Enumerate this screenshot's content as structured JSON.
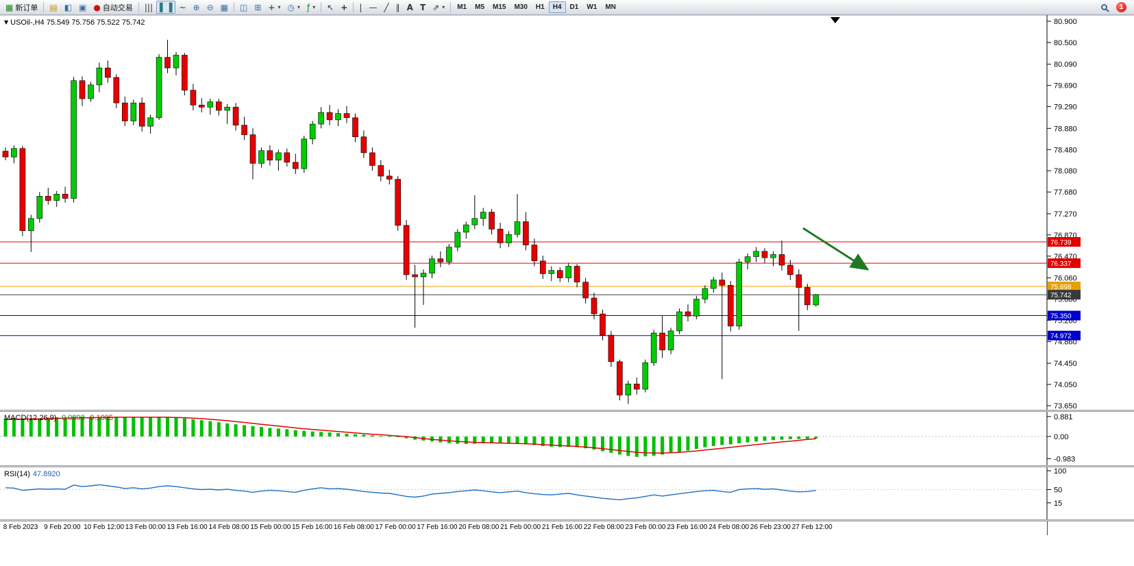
{
  "toolbar": {
    "new_order_label": "新订单",
    "auto_trading_label": "自动交易",
    "timeframe_toolbar": [
      "M1",
      "M5",
      "M15",
      "M30",
      "H1",
      "H4",
      "D1",
      "W1",
      "MN"
    ],
    "active_timeframe": "H4",
    "notification_badge": "1",
    "icons": {
      "new_order": "▦",
      "charts": "▤",
      "profiles": "◧",
      "terminal": "▣",
      "auto_trading": "●",
      "bar_chart": "|||",
      "candle_chart": "▌▐",
      "line_chart": "~",
      "zoom_in": "⊕",
      "zoom_out": "⊖",
      "grid": "▦",
      "tile_horizontal": "◫",
      "tile_vertical": "⊞",
      "new_chart": "+",
      "clock": "◷",
      "indicators": "ƒ",
      "cursor": "↖",
      "crosshair": "+",
      "vertical_line": "|",
      "horizontal_line": "—",
      "trendline": "╱",
      "channel": "∥",
      "text": "A",
      "label": "T",
      "arrows": "⇗",
      "caret": "▾"
    }
  },
  "chart_header": {
    "collapse_marker": "▼",
    "title": "USOil-,H4 75.549 75.756 75.522 75.742",
    "symbol": "USOil-",
    "period": "H4",
    "open": "75.549",
    "high": "75.756",
    "low": "75.522",
    "close": "75.742"
  },
  "indicators": {
    "macd_label": "MACD(12,26,9)",
    "macd_value_main": "-0.0893",
    "macd_value_signal": "-0.1005",
    "rsi_label": "RSI(14)",
    "rsi_value": "47.8920"
  },
  "levels": [
    {
      "price": "76.739",
      "color": "#e00000"
    },
    {
      "price": "76.337",
      "color": "#e00000"
    },
    {
      "price": "75.898",
      "color": "#e8a000"
    },
    {
      "price": "75.742",
      "color": "#3a3a3a"
    },
    {
      "price": "75.350",
      "color": "#0000cc"
    },
    {
      "price": "74.972",
      "color": "#0000cc"
    }
  ],
  "time_axis": [
    "8 Feb 2023",
    "9 Feb 20:00",
    "10 Feb 12:00",
    "13 Feb 00:00",
    "13 Feb 16:00",
    "14 Feb 08:00",
    "15 Feb 00:00",
    "15 Feb 16:00",
    "16 Feb 08:00",
    "17 Feb 00:00",
    "17 Feb 16:00",
    "20 Feb 08:00",
    "21 Feb 00:00",
    "21 Feb 16:00",
    "22 Feb 08:00",
    "23 Feb 00:00",
    "23 Feb 16:00",
    "24 Feb 08:00",
    "26 Feb 23:00",
    "27 Feb 12:00"
  ],
  "chart_data": [
    {
      "type": "candlestick",
      "title": "USOil- H4",
      "up_color": "#00cc00",
      "down_color": "#e60000",
      "wick_color": "#000000",
      "ylim": [
        73.55,
        80.95
      ],
      "y_axis_labels": [
        "80.900",
        "80.500",
        "80.090",
        "79.690",
        "79.290",
        "78.880",
        "78.480",
        "78.080",
        "77.680",
        "77.270",
        "76.870",
        "76.470",
        "76.060",
        "75.660",
        "75.260",
        "74.860",
        "74.450",
        "74.050",
        "73.650"
      ],
      "annotation": {
        "type": "arrow",
        "color": "#1f7a1f",
        "direction": "down-right"
      },
      "ohlc": [
        [
          78.45,
          78.52,
          78.28,
          78.34
        ],
        [
          78.34,
          78.56,
          78.22,
          78.5
        ],
        [
          78.5,
          78.55,
          76.85,
          76.95
        ],
        [
          76.95,
          77.25,
          76.55,
          77.18
        ],
        [
          77.18,
          77.68,
          77.1,
          77.6
        ],
        [
          77.6,
          77.76,
          77.44,
          77.52
        ],
        [
          77.52,
          77.7,
          77.4,
          77.64
        ],
        [
          77.64,
          77.78,
          77.48,
          77.56
        ],
        [
          77.56,
          79.85,
          77.48,
          79.78
        ],
        [
          79.78,
          79.86,
          79.3,
          79.44
        ],
        [
          79.44,
          79.76,
          79.38,
          79.7
        ],
        [
          79.7,
          80.12,
          79.56,
          80.02
        ],
        [
          80.02,
          80.16,
          79.74,
          79.84
        ],
        [
          79.84,
          79.9,
          79.26,
          79.36
        ],
        [
          79.36,
          79.48,
          78.92,
          79.02
        ],
        [
          79.02,
          79.42,
          78.94,
          79.36
        ],
        [
          79.36,
          79.46,
          78.82,
          78.92
        ],
        [
          78.92,
          79.14,
          78.78,
          79.08
        ],
        [
          79.08,
          80.28,
          79.04,
          80.22
        ],
        [
          80.22,
          80.55,
          79.92,
          80.02
        ],
        [
          80.02,
          80.32,
          79.88,
          80.26
        ],
        [
          80.26,
          80.3,
          79.5,
          79.6
        ],
        [
          79.6,
          79.72,
          79.22,
          79.32
        ],
        [
          79.32,
          79.45,
          79.18,
          79.28
        ],
        [
          79.28,
          79.44,
          79.14,
          79.38
        ],
        [
          79.38,
          79.44,
          79.12,
          79.22
        ],
        [
          79.22,
          79.34,
          78.96,
          79.28
        ],
        [
          79.28,
          79.36,
          78.84,
          78.94
        ],
        [
          78.94,
          79.1,
          78.66,
          78.76
        ],
        [
          78.76,
          78.88,
          77.92,
          78.22
        ],
        [
          78.22,
          78.52,
          78.14,
          78.46
        ],
        [
          78.46,
          78.56,
          78.18,
          78.28
        ],
        [
          78.28,
          78.48,
          78.08,
          78.42
        ],
        [
          78.42,
          78.5,
          78.16,
          78.24
        ],
        [
          78.24,
          78.4,
          78.02,
          78.12
        ],
        [
          78.12,
          78.74,
          78.04,
          78.68
        ],
        [
          78.68,
          79.02,
          78.58,
          78.96
        ],
        [
          78.96,
          79.28,
          78.88,
          79.18
        ],
        [
          79.18,
          79.32,
          78.94,
          79.04
        ],
        [
          79.04,
          79.24,
          78.92,
          79.16
        ],
        [
          79.16,
          79.3,
          78.98,
          79.08
        ],
        [
          79.08,
          79.16,
          78.62,
          78.72
        ],
        [
          78.72,
          78.84,
          78.32,
          78.42
        ],
        [
          78.42,
          78.52,
          78.08,
          78.18
        ],
        [
          78.18,
          78.28,
          77.88,
          77.98
        ],
        [
          77.98,
          78.1,
          77.82,
          77.92
        ],
        [
          77.92,
          77.98,
          76.95,
          77.05
        ],
        [
          77.05,
          77.15,
          76.02,
          76.12
        ],
        [
          76.12,
          76.3,
          75.12,
          76.08
        ],
        [
          76.08,
          76.22,
          75.55,
          76.15
        ],
        [
          76.15,
          76.48,
          76.05,
          76.42
        ],
        [
          76.42,
          76.56,
          76.26,
          76.36
        ],
        [
          76.36,
          76.7,
          76.3,
          76.64
        ],
        [
          76.64,
          76.98,
          76.56,
          76.92
        ],
        [
          76.92,
          77.12,
          76.8,
          77.06
        ],
        [
          77.06,
          77.62,
          76.98,
          77.18
        ],
        [
          77.18,
          77.38,
          77.04,
          77.3
        ],
        [
          77.3,
          77.36,
          76.88,
          76.98
        ],
        [
          76.98,
          77.1,
          76.62,
          76.72
        ],
        [
          76.72,
          76.94,
          76.64,
          76.88
        ],
        [
          76.88,
          77.64,
          76.82,
          77.12
        ],
        [
          77.12,
          77.3,
          76.58,
          76.68
        ],
        [
          76.68,
          76.8,
          76.28,
          76.38
        ],
        [
          76.38,
          76.48,
          76.04,
          76.14
        ],
        [
          76.14,
          76.28,
          76.0,
          76.2
        ],
        [
          76.2,
          76.26,
          75.98,
          76.06
        ],
        [
          76.06,
          76.34,
          75.98,
          76.28
        ],
        [
          76.28,
          76.32,
          75.88,
          75.98
        ],
        [
          75.98,
          76.06,
          75.58,
          75.68
        ],
        [
          75.68,
          75.78,
          75.28,
          75.38
        ],
        [
          75.38,
          75.46,
          74.88,
          74.98
        ],
        [
          74.98,
          75.06,
          74.38,
          74.48
        ],
        [
          74.48,
          74.52,
          73.75,
          73.85
        ],
        [
          73.85,
          74.12,
          73.68,
          74.06
        ],
        [
          74.06,
          74.18,
          73.86,
          73.96
        ],
        [
          73.96,
          74.52,
          73.9,
          74.46
        ],
        [
          74.46,
          75.08,
          74.4,
          75.02
        ],
        [
          75.02,
          75.34,
          74.55,
          74.7
        ],
        [
          74.7,
          75.12,
          74.62,
          75.06
        ],
        [
          75.06,
          75.48,
          75.0,
          75.42
        ],
        [
          75.42,
          75.56,
          75.24,
          75.34
        ],
        [
          75.34,
          75.72,
          75.28,
          75.66
        ],
        [
          75.66,
          75.92,
          75.58,
          75.86
        ],
        [
          75.86,
          76.08,
          75.78,
          76.02
        ],
        [
          76.02,
          76.16,
          74.15,
          75.92
        ],
        [
          75.92,
          76.0,
          75.05,
          75.15
        ],
        [
          75.15,
          76.42,
          75.08,
          76.36
        ],
        [
          76.36,
          76.52,
          76.22,
          76.46
        ],
        [
          76.46,
          76.64,
          76.36,
          76.56
        ],
        [
          76.56,
          76.62,
          76.34,
          76.44
        ],
        [
          76.44,
          76.56,
          76.28,
          76.5
        ],
        [
          76.5,
          76.76,
          76.2,
          76.3
        ],
        [
          76.3,
          76.4,
          76.02,
          76.12
        ],
        [
          76.12,
          76.22,
          75.06,
          75.88
        ],
        [
          75.88,
          75.95,
          75.45,
          75.55
        ],
        [
          75.549,
          75.756,
          75.522,
          75.742
        ]
      ]
    },
    {
      "type": "bar",
      "title": "MACD(12,26,9)",
      "histogram_color": "#00c000",
      "signal_color": "#e00000",
      "y_axis_labels": [
        "0.881",
        "0.00",
        "-0.983"
      ],
      "histogram": [
        0.8,
        0.82,
        0.8,
        0.78,
        0.8,
        0.83,
        0.85,
        0.84,
        0.86,
        0.88,
        0.87,
        0.86,
        0.88,
        0.87,
        0.85,
        0.84,
        0.85,
        0.86,
        0.87,
        0.85,
        0.83,
        0.8,
        0.76,
        0.72,
        0.68,
        0.63,
        0.58,
        0.54,
        0.5,
        0.46,
        0.42,
        0.38,
        0.35,
        0.32,
        0.28,
        0.25,
        0.22,
        0.2,
        0.18,
        0.15,
        0.12,
        0.1,
        0.08,
        0.05,
        0.03,
        0.01,
        -0.03,
        -0.08,
        -0.14,
        -0.18,
        -0.22,
        -0.26,
        -0.3,
        -0.32,
        -0.33,
        -0.32,
        -0.3,
        -0.29,
        -0.3,
        -0.32,
        -0.33,
        -0.35,
        -0.38,
        -0.42,
        -0.45,
        -0.47,
        -0.46,
        -0.48,
        -0.52,
        -0.58,
        -0.65,
        -0.72,
        -0.8,
        -0.86,
        -0.9,
        -0.88,
        -0.85,
        -0.8,
        -0.74,
        -0.68,
        -0.62,
        -0.55,
        -0.48,
        -0.42,
        -0.38,
        -0.35,
        -0.3,
        -0.26,
        -0.22,
        -0.19,
        -0.16,
        -0.14,
        -0.12,
        -0.11,
        -0.1,
        -0.0893
      ],
      "signal": [
        0.75,
        0.76,
        0.77,
        0.78,
        0.78,
        0.79,
        0.8,
        0.81,
        0.82,
        0.83,
        0.83,
        0.84,
        0.84,
        0.85,
        0.85,
        0.85,
        0.85,
        0.85,
        0.85,
        0.85,
        0.84,
        0.83,
        0.81,
        0.79,
        0.76,
        0.73,
        0.7,
        0.66,
        0.62,
        0.58,
        0.54,
        0.5,
        0.46,
        0.42,
        0.38,
        0.34,
        0.31,
        0.28,
        0.25,
        0.22,
        0.19,
        0.16,
        0.13,
        0.1,
        0.08,
        0.05,
        0.02,
        -0.01,
        -0.05,
        -0.09,
        -0.13,
        -0.16,
        -0.19,
        -0.22,
        -0.24,
        -0.26,
        -0.27,
        -0.28,
        -0.29,
        -0.3,
        -0.31,
        -0.32,
        -0.34,
        -0.36,
        -0.38,
        -0.4,
        -0.42,
        -0.44,
        -0.47,
        -0.5,
        -0.54,
        -0.58,
        -0.62,
        -0.66,
        -0.7,
        -0.72,
        -0.73,
        -0.73,
        -0.72,
        -0.7,
        -0.67,
        -0.64,
        -0.6,
        -0.56,
        -0.52,
        -0.48,
        -0.44,
        -0.4,
        -0.36,
        -0.32,
        -0.28,
        -0.24,
        -0.21,
        -0.17,
        -0.13,
        -0.1005
      ]
    },
    {
      "type": "line",
      "title": "RSI(14)",
      "line_color": "#1e6fc4",
      "y_axis_labels": [
        "100",
        "50",
        "15"
      ],
      "values": [
        55,
        54,
        48,
        50,
        52,
        51,
        52,
        51,
        62,
        58,
        60,
        63,
        60,
        57,
        53,
        55,
        52,
        54,
        58,
        60,
        58,
        55,
        52,
        50,
        51,
        49,
        51,
        48,
        46,
        43,
        46,
        48,
        47,
        45,
        43,
        48,
        52,
        55,
        52,
        53,
        51,
        48,
        45,
        43,
        41,
        40,
        36,
        32,
        30,
        33,
        38,
        40,
        42,
        45,
        47,
        49,
        47,
        44,
        42,
        44,
        46,
        42,
        39,
        37,
        36,
        38,
        40,
        36,
        33,
        30,
        27,
        25,
        23,
        26,
        28,
        32,
        36,
        33,
        36,
        39,
        42,
        45,
        47,
        48,
        45,
        43,
        50,
        52,
        53,
        51,
        52,
        49,
        46,
        44,
        45,
        47.89
      ]
    }
  ]
}
